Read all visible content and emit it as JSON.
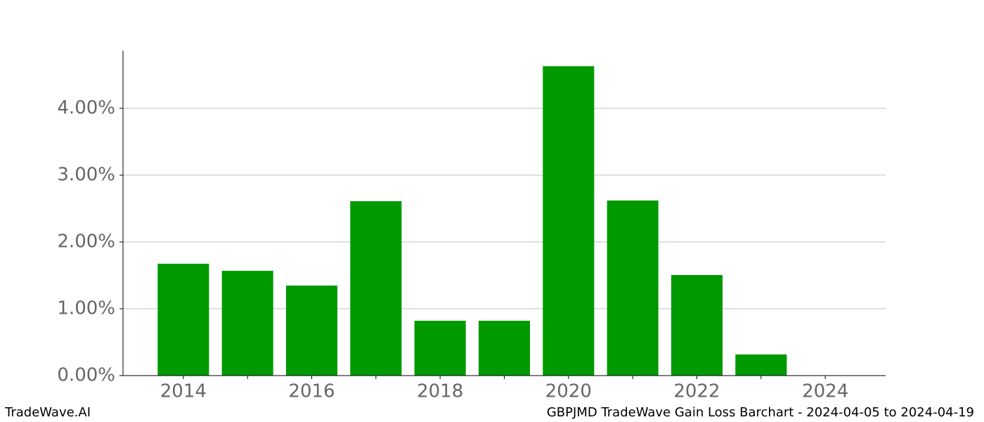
{
  "chart_data": {
    "type": "bar",
    "title": "GBPJMD TradeWave Gain Loss Barchart - 2024-04-05 to 2024-04-19",
    "brand": "TradeWave.AI",
    "x": [
      2014,
      2015,
      2016,
      2017,
      2018,
      2019,
      2020,
      2021,
      2022,
      2023,
      2024
    ],
    "values": [
      1.674,
      1.568,
      1.347,
      2.61,
      0.82,
      0.82,
      4.63,
      2.62,
      1.505,
      0.316,
      0
    ],
    "color": "#009900",
    "bar_width": 0.8,
    "xlim": [
      2013.06,
      2024.94
    ],
    "xticks": [
      2014,
      2016,
      2018,
      2020,
      2022,
      2024
    ],
    "xminorticks": [
      2015,
      2017,
      2019,
      2021,
      2023
    ],
    "ylim": [
      0,
      4.863
    ],
    "yticks": [
      {
        "value": 0,
        "label": "0.00%"
      },
      {
        "value": 1,
        "label": "1.00%"
      },
      {
        "value": 2,
        "label": "2.00%"
      },
      {
        "value": 3,
        "label": "3.00%"
      },
      {
        "value": 4,
        "label": "4.00%"
      }
    ],
    "grid": true
  }
}
